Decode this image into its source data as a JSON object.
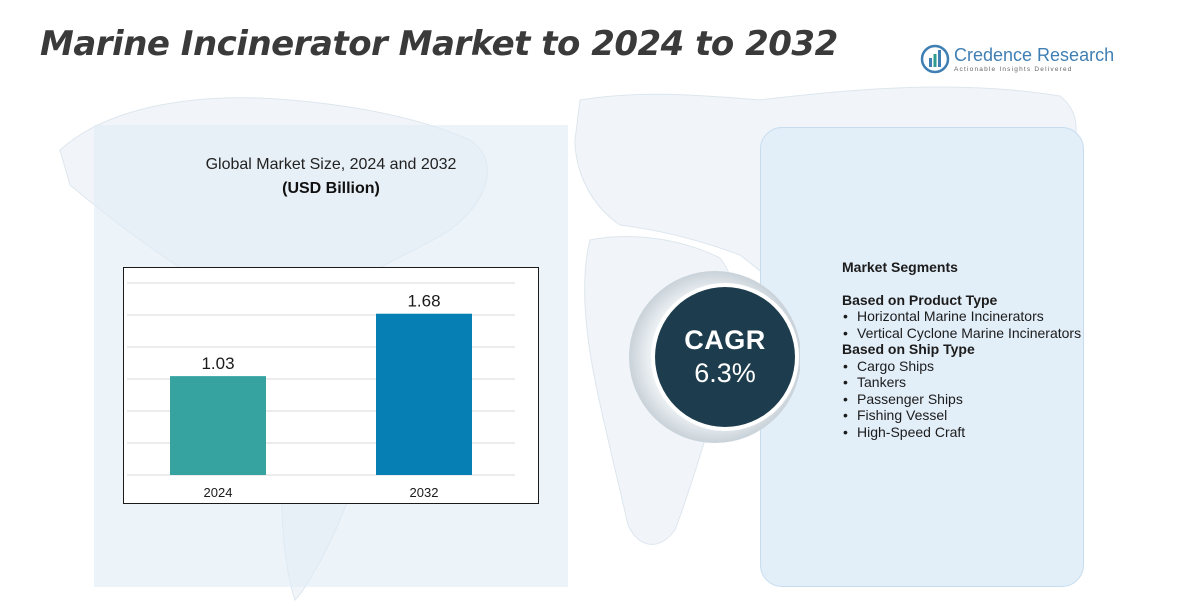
{
  "header": {
    "title": "Marine Incinerator Market to 2024 to 2032"
  },
  "logo": {
    "name": "Credence Research",
    "tagline": "Actionable Insights Delivered",
    "icon": "bar-chart-circle-icon"
  },
  "chart_panel": {
    "title": "Global Market Size, 2024 and 2032",
    "unit": "(USD Billion)"
  },
  "chart_data": {
    "type": "bar",
    "title": "Global Market Size, 2024 and 2032",
    "ylabel": "(USD Billion)",
    "categories": [
      "2024",
      "2032"
    ],
    "values": [
      1.03,
      1.68
    ],
    "value_labels": [
      "1.03",
      "1.68"
    ],
    "colors": [
      "#36a3a0",
      "#0680b4"
    ],
    "ylim": [
      0,
      2
    ],
    "grid": true
  },
  "cagr": {
    "label": "CAGR",
    "value": "6.3%"
  },
  "segments": {
    "heading": "Market Segments",
    "groups": [
      {
        "title": "Based on Product Type",
        "items": [
          "Horizontal Marine Incinerators",
          "Vertical Cyclone Marine Incinerators"
        ]
      },
      {
        "title": "Based on Ship Type",
        "items": [
          "Cargo Ships",
          "Tankers",
          "Passenger Ships",
          "Fishing Vessel",
          "High-Speed Craft"
        ]
      }
    ]
  },
  "colors": {
    "title": "#3a3a3a",
    "cagr_circle": "#1d3d4e",
    "panel": "#e2eef8",
    "bar_2024": "#36a3a0",
    "bar_2032": "#0680b4"
  }
}
